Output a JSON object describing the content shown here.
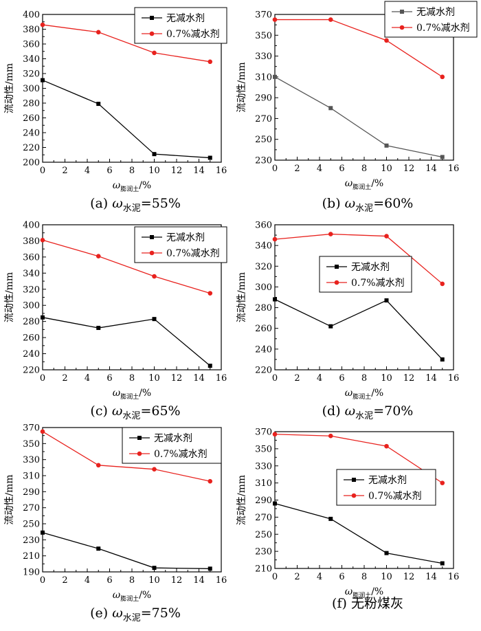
{
  "figure": {
    "charts": [
      {
        "id": "a",
        "caption_prefix": "(a) ",
        "caption_omega": "ω",
        "caption_sub": "水泥",
        "caption_suffix": "=55%",
        "caption_text": "",
        "xlabel_main": "ω",
        "xlabel_sub": "膨润土",
        "xlabel_unit": "/%",
        "ylabel": "流动性/mm",
        "xlim": [
          0,
          16
        ],
        "ylim": [
          200,
          400
        ],
        "xticks": [
          0,
          2,
          4,
          6,
          8,
          10,
          12,
          14,
          16
        ],
        "yticks": [
          200,
          220,
          240,
          260,
          280,
          300,
          320,
          340,
          360,
          380,
          400
        ],
        "legend_position": "top-right",
        "series": [
          {
            "name": "无减水剂",
            "marker": "square",
            "color": "#000000",
            "x": [
              0,
              5,
              10,
              15
            ],
            "y": [
              311,
              279,
              211,
              206
            ]
          },
          {
            "name": "0.7%减水剂",
            "marker": "circle",
            "color": "#e8221e",
            "x": [
              0,
              5,
              10,
              15
            ],
            "y": [
              386,
              376,
              348,
              336
            ]
          }
        ]
      },
      {
        "id": "b",
        "caption_prefix": "(b) ",
        "caption_omega": "ω",
        "caption_sub": "水泥",
        "caption_suffix": "=60%",
        "caption_text": "",
        "xlabel_main": "ω",
        "xlabel_sub": "膨润土",
        "xlabel_unit": "/%",
        "ylabel": "流动性/mm",
        "xlim": [
          0,
          16
        ],
        "ylim": [
          230,
          370
        ],
        "xticks": [
          0,
          2,
          4,
          6,
          8,
          10,
          12,
          14,
          16
        ],
        "yticks": [
          230,
          250,
          270,
          290,
          310,
          330,
          350,
          370
        ],
        "legend_position": "top-right",
        "series": [
          {
            "name": "无减水剂",
            "marker": "square",
            "color": "#555555",
            "x": [
              0,
              5,
              10,
              15
            ],
            "y": [
              310,
              280,
              244,
              233
            ]
          },
          {
            "name": "0.7%减水剂",
            "marker": "circle",
            "color": "#e8221e",
            "x": [
              0,
              5,
              10,
              15
            ],
            "y": [
              365,
              365,
              345,
              310
            ]
          }
        ]
      },
      {
        "id": "c",
        "caption_prefix": "(c) ",
        "caption_omega": "ω",
        "caption_sub": "水泥",
        "caption_suffix": "=65%",
        "caption_text": "",
        "xlabel_main": "ω",
        "xlabel_sub": "膨润土",
        "xlabel_unit": "/%",
        "ylabel": "流动性/mm",
        "xlim": [
          0,
          16
        ],
        "ylim": [
          220,
          400
        ],
        "xticks": [
          0,
          2,
          4,
          6,
          8,
          10,
          12,
          14,
          16
        ],
        "yticks": [
          220,
          240,
          260,
          280,
          300,
          320,
          340,
          360,
          380,
          400
        ],
        "legend_position": "top-right",
        "series": [
          {
            "name": "无减水剂",
            "marker": "square",
            "color": "#000000",
            "x": [
              0,
              5,
              10,
              15
            ],
            "y": [
              285,
              272,
              283,
              225
            ]
          },
          {
            "name": "0.7%减水剂",
            "marker": "circle",
            "color": "#e8221e",
            "x": [
              0,
              5,
              10,
              15
            ],
            "y": [
              381,
              361,
              336,
              315
            ]
          }
        ]
      },
      {
        "id": "d",
        "caption_prefix": "(d) ",
        "caption_omega": "ω",
        "caption_sub": "水泥",
        "caption_suffix": "=70%",
        "caption_text": "",
        "xlabel_main": "ω",
        "xlabel_sub": "膨润土",
        "xlabel_unit": "/%",
        "ylabel": "流动性/mm",
        "xlim": [
          0,
          16
        ],
        "ylim": [
          220,
          360
        ],
        "xticks": [
          0,
          2,
          4,
          6,
          8,
          10,
          12,
          14,
          16
        ],
        "yticks": [
          220,
          240,
          260,
          280,
          300,
          320,
          340,
          360
        ],
        "legend_position": "middle-right",
        "series": [
          {
            "name": "无减水剂",
            "marker": "square",
            "color": "#000000",
            "x": [
              0,
              5,
              10,
              15
            ],
            "y": [
              288,
              262,
              287,
              230
            ]
          },
          {
            "name": "0.7%减水剂",
            "marker": "circle",
            "color": "#e8221e",
            "x": [
              0,
              5,
              10,
              15
            ],
            "y": [
              346,
              351,
              349,
              303
            ]
          }
        ]
      },
      {
        "id": "e",
        "caption_prefix": "(e) ",
        "caption_omega": "ω",
        "caption_sub": "水泥",
        "caption_suffix": "=75%",
        "caption_text": "",
        "xlabel_main": "ω",
        "xlabel_sub": "膨润土",
        "xlabel_unit": "/%",
        "ylabel": "流动性/mm",
        "xlim": [
          0,
          16
        ],
        "ylim": [
          190,
          370
        ],
        "xticks": [
          0,
          2,
          4,
          6,
          8,
          10,
          12,
          14,
          16
        ],
        "yticks": [
          190,
          210,
          230,
          250,
          270,
          290,
          310,
          330,
          350,
          370
        ],
        "legend_position": "top-right",
        "series": [
          {
            "name": "无减水剂",
            "marker": "square",
            "color": "#000000",
            "x": [
              0,
              5,
              10,
              15
            ],
            "y": [
              239,
              219,
              195,
              194
            ]
          },
          {
            "name": "0.7%减水剂",
            "marker": "circle",
            "color": "#e8221e",
            "x": [
              0,
              5,
              10,
              15
            ],
            "y": [
              365,
              323,
              318,
              303
            ]
          }
        ]
      },
      {
        "id": "f",
        "caption_prefix": "(f) ",
        "caption_omega": "",
        "caption_sub": "",
        "caption_suffix": "",
        "caption_text": "无粉煤灰",
        "xlabel_main": "ω",
        "xlabel_sub": "膨润土",
        "xlabel_unit": "/%",
        "ylabel": "流动性/mm",
        "xlim": [
          0,
          16
        ],
        "ylim": [
          210,
          370
        ],
        "xticks": [
          0,
          2,
          4,
          6,
          8,
          10,
          12,
          14,
          16
        ],
        "yticks": [
          210,
          230,
          250,
          270,
          290,
          310,
          330,
          350,
          370
        ],
        "legend_position": "middle-right",
        "series": [
          {
            "name": "无减水剂",
            "marker": "square",
            "color": "#000000",
            "x": [
              0,
              5,
              10,
              15
            ],
            "y": [
              286,
              268,
              228,
              216
            ]
          },
          {
            "name": "0.7%减水剂",
            "marker": "circle",
            "color": "#e8221e",
            "x": [
              0,
              5,
              10,
              15
            ],
            "y": [
              367,
              365,
              353,
              310
            ]
          }
        ]
      }
    ]
  },
  "chart_data": [
    {
      "type": "line",
      "title": "(a) ω水泥=55%",
      "xlabel": "ω膨润土/%",
      "ylabel": "流动性/mm",
      "xlim": [
        0,
        16
      ],
      "ylim": [
        200,
        400
      ],
      "grid": false,
      "legend": "top-right",
      "series": [
        {
          "name": "无减水剂",
          "x": [
            0,
            5,
            10,
            15
          ],
          "y": [
            311,
            279,
            211,
            206
          ]
        },
        {
          "name": "0.7%减水剂",
          "x": [
            0,
            5,
            10,
            15
          ],
          "y": [
            386,
            376,
            348,
            336
          ]
        }
      ]
    },
    {
      "type": "line",
      "title": "(b) ω水泥=60%",
      "xlabel": "ω膨润土/%",
      "ylabel": "流动性/mm",
      "xlim": [
        0,
        16
      ],
      "ylim": [
        230,
        370
      ],
      "grid": false,
      "legend": "top-right",
      "series": [
        {
          "name": "无减水剂",
          "x": [
            0,
            5,
            10,
            15
          ],
          "y": [
            310,
            280,
            244,
            233
          ]
        },
        {
          "name": "0.7%减水剂",
          "x": [
            0,
            5,
            10,
            15
          ],
          "y": [
            365,
            365,
            345,
            310
          ]
        }
      ]
    },
    {
      "type": "line",
      "title": "(c) ω水泥=65%",
      "xlabel": "ω膨润土/%",
      "ylabel": "流动性/mm",
      "xlim": [
        0,
        16
      ],
      "ylim": [
        220,
        400
      ],
      "grid": false,
      "legend": "top-right",
      "series": [
        {
          "name": "无减水剂",
          "x": [
            0,
            5,
            10,
            15
          ],
          "y": [
            285,
            272,
            283,
            225
          ]
        },
        {
          "name": "0.7%减水剂",
          "x": [
            0,
            5,
            10,
            15
          ],
          "y": [
            381,
            361,
            336,
            315
          ]
        }
      ]
    },
    {
      "type": "line",
      "title": "(d) ω水泥=70%",
      "xlabel": "ω膨润土/%",
      "ylabel": "流动性/mm",
      "xlim": [
        0,
        16
      ],
      "ylim": [
        220,
        360
      ],
      "grid": false,
      "legend": "middle-right",
      "series": [
        {
          "name": "无减水剂",
          "x": [
            0,
            5,
            10,
            15
          ],
          "y": [
            288,
            262,
            287,
            230
          ]
        },
        {
          "name": "0.7%减水剂",
          "x": [
            0,
            5,
            10,
            15
          ],
          "y": [
            346,
            351,
            349,
            303
          ]
        }
      ]
    },
    {
      "type": "line",
      "title": "(e) ω水泥=75%",
      "xlabel": "ω膨润土/%",
      "ylabel": "流动性/mm",
      "xlim": [
        0,
        16
      ],
      "ylim": [
        190,
        370
      ],
      "grid": false,
      "legend": "top-right",
      "series": [
        {
          "name": "无减水剂",
          "x": [
            0,
            5,
            10,
            15
          ],
          "y": [
            239,
            219,
            195,
            194
          ]
        },
        {
          "name": "0.7%减水剂",
          "x": [
            0,
            5,
            10,
            15
          ],
          "y": [
            365,
            323,
            318,
            303
          ]
        }
      ]
    },
    {
      "type": "line",
      "title": "(f) 无粉煤灰",
      "xlabel": "ω膨润土/%",
      "ylabel": "流动性/mm",
      "xlim": [
        0,
        16
      ],
      "ylim": [
        210,
        370
      ],
      "grid": false,
      "legend": "middle-right",
      "series": [
        {
          "name": "无减水剂",
          "x": [
            0,
            5,
            10,
            15
          ],
          "y": [
            286,
            268,
            228,
            216
          ]
        },
        {
          "name": "0.7%减水剂",
          "x": [
            0,
            5,
            10,
            15
          ],
          "y": [
            367,
            365,
            353,
            310
          ]
        }
      ]
    }
  ]
}
